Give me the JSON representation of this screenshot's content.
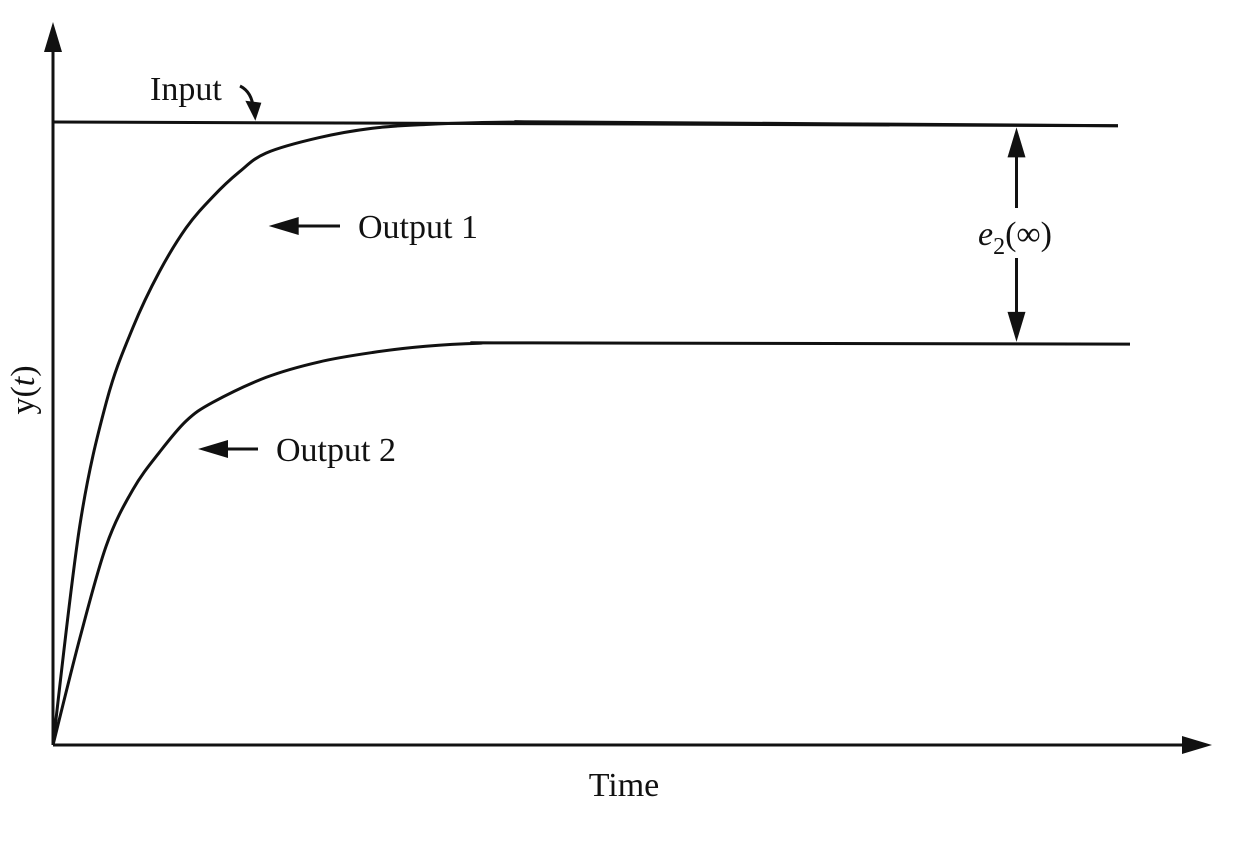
{
  "chart_data": {
    "type": "line",
    "title": "",
    "xlabel": "Time",
    "ylabel_prefix": "y(",
    "ylabel_var": "t",
    "ylabel_suffix": ")",
    "xlim": [
      0,
      10
    ],
    "ylim": [
      0,
      1
    ],
    "grid": false,
    "legend": "none",
    "series": [
      {
        "name": "Input",
        "x": [
          0,
          10
        ],
        "y": [
          1.0,
          0.994
        ]
      },
      {
        "name": "Output 1",
        "x": [
          0.0,
          0.25,
          0.5,
          0.75,
          1.0,
          1.25,
          1.5,
          1.75,
          2.0,
          2.5,
          3.0,
          3.5,
          4.0,
          4.5,
          4.8,
          10.0
        ],
        "y": [
          0.0,
          0.35,
          0.55,
          0.67,
          0.76,
          0.83,
          0.88,
          0.92,
          0.95,
          0.975,
          0.99,
          0.996,
          0.999,
          1.0,
          1.0,
          0.994
        ]
      },
      {
        "name": "Output 2",
        "x": [
          0.0,
          0.25,
          0.5,
          0.75,
          1.0,
          1.25,
          1.5,
          2.0,
          2.5,
          3.0,
          3.5,
          4.0,
          4.5,
          10.0
        ],
        "y": [
          0.0,
          0.17,
          0.32,
          0.41,
          0.47,
          0.52,
          0.55,
          0.59,
          0.615,
          0.63,
          0.64,
          0.645,
          0.6455,
          0.6435
        ]
      }
    ],
    "annotations": [
      {
        "text_main": "e",
        "text_sub": "2",
        "text_tail": "(∞)",
        "between": [
          "Input",
          "Output 2"
        ],
        "at_x": 9.0
      }
    ],
    "colors": {
      "line": "#111111",
      "background": "#ffffff"
    }
  }
}
